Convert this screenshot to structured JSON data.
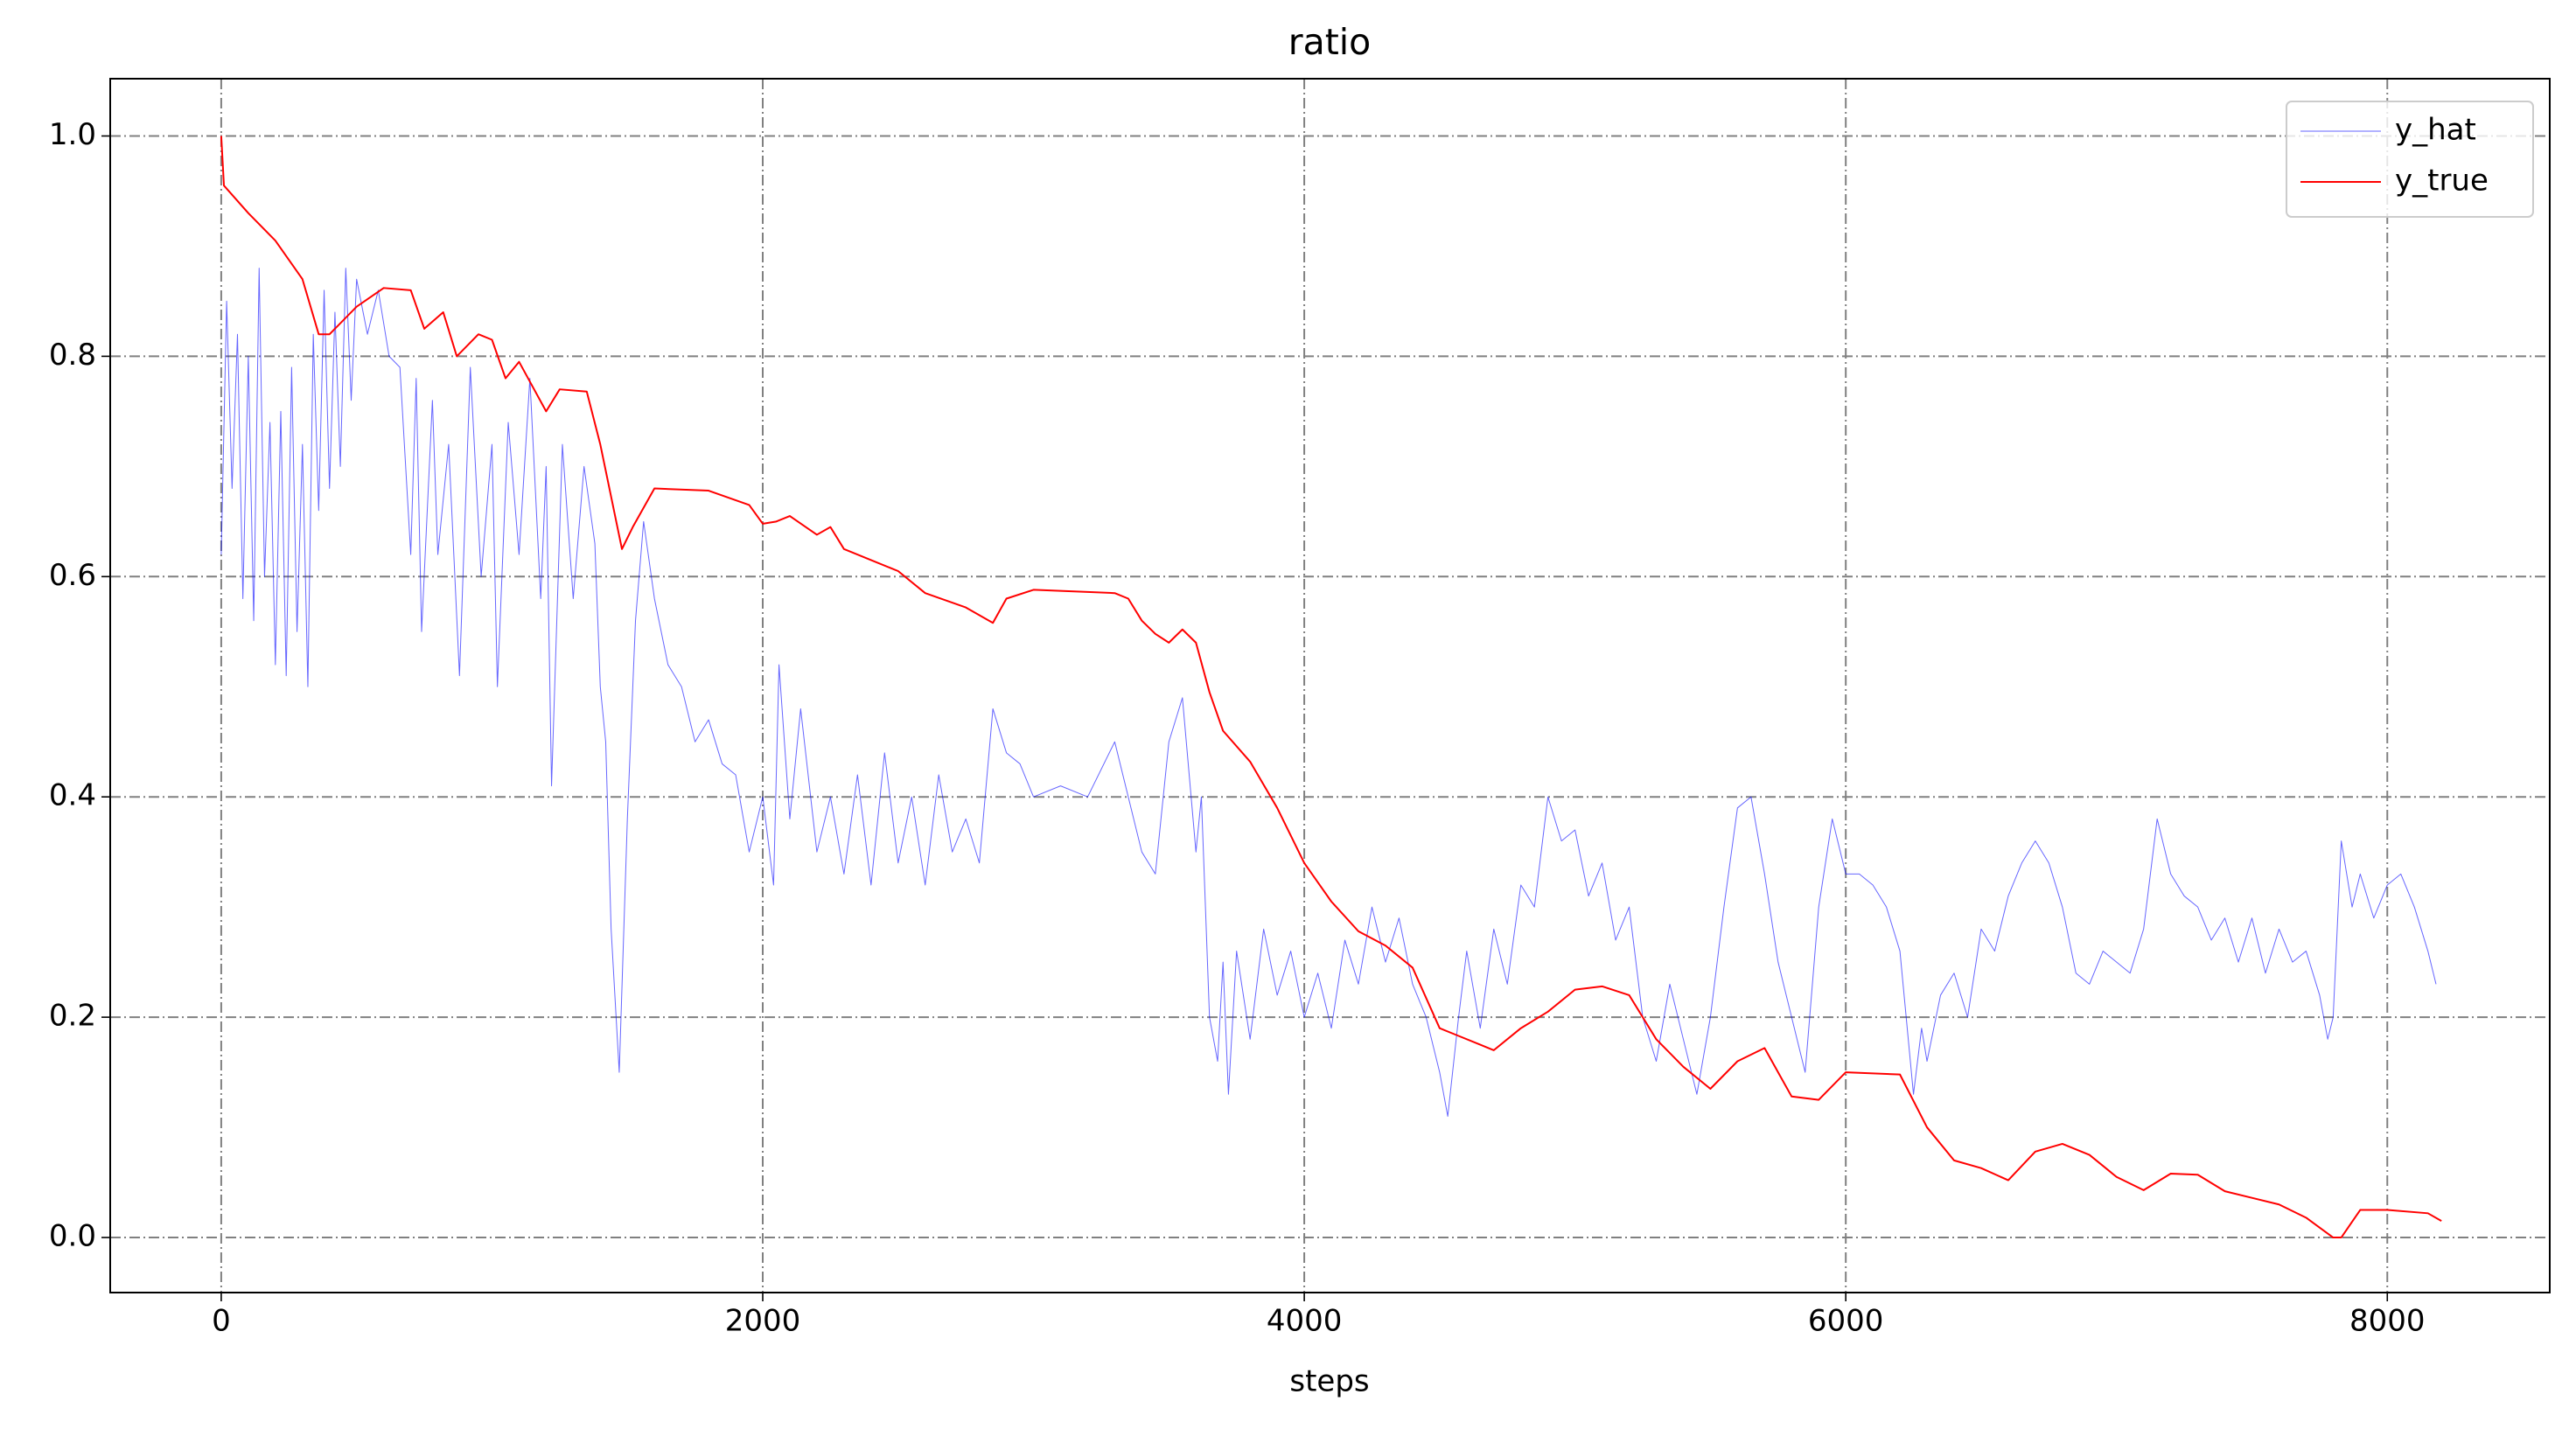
{
  "chart_data": {
    "type": "line",
    "title": "ratio",
    "x_label": "steps",
    "xlim": [
      -410,
      8600
    ],
    "xticks": [
      0,
      2000,
      4000,
      6000,
      8000
    ],
    "ylim": [
      -0.05,
      1.052
    ],
    "yticks": [
      {
        "value": 0,
        "label": "0.0"
      },
      0.2,
      0.4,
      0.6,
      0.8,
      {
        "value": 1,
        "label": "1.0"
      }
    ],
    "grid": true,
    "legend": "upper right",
    "series": [
      {
        "name": "y_hat",
        "color": "#0000ff",
        "x": [
          0,
          20,
          40,
          60,
          80,
          100,
          120,
          140,
          160,
          180,
          200,
          220,
          240,
          260,
          280,
          300,
          320,
          340,
          360,
          380,
          400,
          420,
          440,
          460,
          480,
          500,
          540,
          580,
          620,
          660,
          700,
          720,
          740,
          780,
          800,
          840,
          880,
          920,
          960,
          1000,
          1020,
          1060,
          1100,
          1140,
          1180,
          1200,
          1220,
          1260,
          1300,
          1340,
          1380,
          1400,
          1420,
          1440,
          1470,
          1500,
          1530,
          1560,
          1600,
          1650,
          1700,
          1750,
          1800,
          1850,
          1900,
          1950,
          2000,
          2040,
          2060,
          2100,
          2140,
          2200,
          2250,
          2300,
          2350,
          2400,
          2450,
          2500,
          2550,
          2600,
          2650,
          2700,
          2750,
          2800,
          2850,
          2900,
          2950,
          3000,
          3100,
          3200,
          3300,
          3350,
          3400,
          3450,
          3500,
          3550,
          3600,
          3620,
          3650,
          3680,
          3700,
          3720,
          3750,
          3800,
          3850,
          3900,
          3950,
          4000,
          4050,
          4100,
          4150,
          4200,
          4250,
          4300,
          4350,
          4400,
          4450,
          4500,
          4530,
          4570,
          4600,
          4650,
          4700,
          4750,
          4800,
          4850,
          4900,
          4950,
          5000,
          5050,
          5100,
          5150,
          5200,
          5250,
          5300,
          5350,
          5400,
          5450,
          5500,
          5550,
          5600,
          5650,
          5700,
          5750,
          5800,
          5850,
          5900,
          5950,
          6000,
          6050,
          6100,
          6150,
          6200,
          6250,
          6280,
          6300,
          6350,
          6400,
          6450,
          6500,
          6550,
          6600,
          6650,
          6700,
          6750,
          6800,
          6850,
          6900,
          6950,
          7000,
          7050,
          7100,
          7150,
          7200,
          7250,
          7300,
          7350,
          7400,
          7450,
          7500,
          7550,
          7600,
          7650,
          7700,
          7750,
          7780,
          7800,
          7830,
          7870,
          7900,
          7950,
          8000,
          8050,
          8100,
          8150,
          8180
        ],
        "values": [
          0.62,
          0.85,
          0.68,
          0.82,
          0.58,
          0.8,
          0.56,
          0.88,
          0.6,
          0.74,
          0.52,
          0.75,
          0.51,
          0.79,
          0.55,
          0.72,
          0.5,
          0.82,
          0.66,
          0.86,
          0.68,
          0.84,
          0.7,
          0.88,
          0.76,
          0.87,
          0.82,
          0.86,
          0.8,
          0.79,
          0.62,
          0.78,
          0.55,
          0.76,
          0.62,
          0.72,
          0.51,
          0.79,
          0.6,
          0.72,
          0.5,
          0.74,
          0.62,
          0.78,
          0.58,
          0.7,
          0.41,
          0.72,
          0.58,
          0.7,
          0.63,
          0.5,
          0.45,
          0.28,
          0.15,
          0.38,
          0.56,
          0.65,
          0.58,
          0.52,
          0.5,
          0.45,
          0.47,
          0.43,
          0.42,
          0.35,
          0.4,
          0.32,
          0.52,
          0.38,
          0.48,
          0.35,
          0.4,
          0.33,
          0.42,
          0.32,
          0.44,
          0.34,
          0.4,
          0.32,
          0.42,
          0.35,
          0.38,
          0.34,
          0.48,
          0.44,
          0.43,
          0.4,
          0.41,
          0.4,
          0.45,
          0.4,
          0.35,
          0.33,
          0.45,
          0.49,
          0.35,
          0.4,
          0.2,
          0.16,
          0.25,
          0.13,
          0.26,
          0.18,
          0.28,
          0.22,
          0.26,
          0.2,
          0.24,
          0.19,
          0.27,
          0.23,
          0.3,
          0.25,
          0.29,
          0.23,
          0.2,
          0.15,
          0.11,
          0.2,
          0.26,
          0.19,
          0.28,
          0.23,
          0.32,
          0.3,
          0.4,
          0.36,
          0.37,
          0.31,
          0.34,
          0.27,
          0.3,
          0.2,
          0.16,
          0.23,
          0.18,
          0.13,
          0.2,
          0.3,
          0.39,
          0.4,
          0.33,
          0.25,
          0.2,
          0.15,
          0.3,
          0.38,
          0.33,
          0.33,
          0.32,
          0.3,
          0.26,
          0.13,
          0.19,
          0.16,
          0.22,
          0.24,
          0.2,
          0.28,
          0.26,
          0.31,
          0.34,
          0.36,
          0.34,
          0.3,
          0.24,
          0.23,
          0.26,
          0.25,
          0.24,
          0.28,
          0.38,
          0.33,
          0.31,
          0.3,
          0.27,
          0.29,
          0.25,
          0.29,
          0.24,
          0.28,
          0.25,
          0.26,
          0.22,
          0.18,
          0.2,
          0.36,
          0.3,
          0.33,
          0.29,
          0.32,
          0.33,
          0.3,
          0.26,
          0.23
        ]
      },
      {
        "name": "y_true",
        "color": "#ff0000",
        "x": [
          0,
          10,
          100,
          200,
          300,
          360,
          400,
          500,
          600,
          700,
          750,
          820,
          870,
          950,
          1000,
          1050,
          1100,
          1200,
          1250,
          1350,
          1400,
          1480,
          1520,
          1600,
          1800,
          1950,
          2000,
          2050,
          2100,
          2200,
          2250,
          2300,
          2400,
          2500,
          2600,
          2750,
          2850,
          2900,
          3000,
          3300,
          3350,
          3400,
          3450,
          3500,
          3550,
          3600,
          3650,
          3700,
          3800,
          3900,
          4000,
          4100,
          4200,
          4300,
          4400,
          4500,
          4550,
          4650,
          4700,
          4800,
          4900,
          5000,
          5100,
          5200,
          5300,
          5400,
          5500,
          5600,
          5700,
          5800,
          5900,
          6000,
          6200,
          6300,
          6400,
          6500,
          6600,
          6700,
          6800,
          6900,
          7000,
          7100,
          7200,
          7300,
          7400,
          7500,
          7600,
          7700,
          7800,
          7830,
          7900,
          8000,
          8150,
          8200
        ],
        "values": [
          1.0,
          0.955,
          0.93,
          0.905,
          0.87,
          0.82,
          0.82,
          0.845,
          0.862,
          0.86,
          0.825,
          0.84,
          0.8,
          0.82,
          0.815,
          0.78,
          0.795,
          0.75,
          0.77,
          0.768,
          0.72,
          0.625,
          0.645,
          0.68,
          0.678,
          0.665,
          0.648,
          0.65,
          0.655,
          0.638,
          0.645,
          0.625,
          0.615,
          0.605,
          0.585,
          0.572,
          0.558,
          0.58,
          0.588,
          0.585,
          0.58,
          0.56,
          0.548,
          0.54,
          0.552,
          0.54,
          0.495,
          0.46,
          0.432,
          0.39,
          0.34,
          0.305,
          0.278,
          0.265,
          0.245,
          0.19,
          0.185,
          0.175,
          0.17,
          0.19,
          0.205,
          0.225,
          0.228,
          0.22,
          0.18,
          0.155,
          0.135,
          0.16,
          0.172,
          0.128,
          0.125,
          0.15,
          0.148,
          0.1,
          0.07,
          0.063,
          0.052,
          0.078,
          0.085,
          0.075,
          0.055,
          0.043,
          0.058,
          0.057,
          0.042,
          0.036,
          0.03,
          0.018,
          0.0,
          0.0,
          0.025,
          0.025,
          0.022,
          0.015
        ]
      }
    ]
  }
}
